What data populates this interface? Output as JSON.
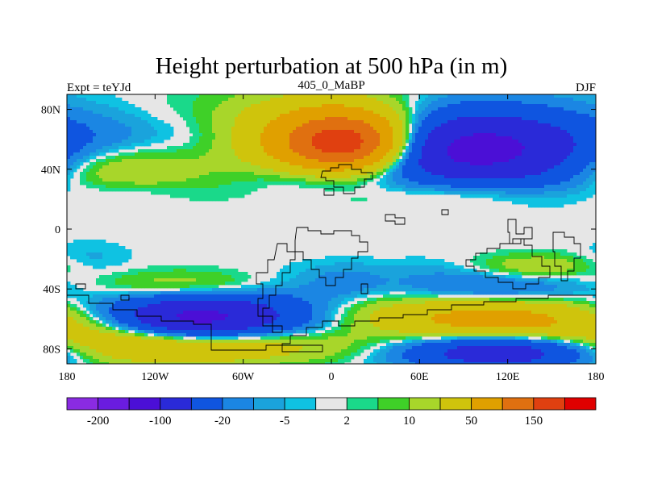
{
  "chart_data": {
    "type": "heatmap",
    "title": "Height perturbation at 500 hPa (in m)",
    "left_string": "Expt = teYJd",
    "center_string": "405_0_MaBP",
    "right_string": "DJF",
    "x_range": [
      -180,
      180
    ],
    "y_range": [
      -90,
      90
    ],
    "x_ticks": [
      -180,
      -120,
      -60,
      0,
      60,
      120,
      180
    ],
    "x_tick_labels": [
      "180",
      "120W",
      "60W",
      "0",
      "60E",
      "120E",
      "180"
    ],
    "y_ticks": [
      80,
      40,
      0,
      -40,
      -80
    ],
    "y_tick_labels": [
      "80N",
      "40N",
      "0",
      "40S",
      "80S"
    ],
    "colorbar": {
      "levels": [
        -200,
        -150,
        -100,
        -50,
        -20,
        -10,
        -5,
        -2,
        2,
        5,
        10,
        20,
        50,
        100,
        150,
        200
      ],
      "shown_labels": [
        "-200",
        "-100",
        "-20",
        "-5",
        "2",
        "10",
        "50",
        "150"
      ],
      "colors": [
        "#8a2be2",
        "#6a1ce0",
        "#4b0fd6",
        "#2a2ad8",
        "#0f55e0",
        "#1b86e3",
        "#1aa3dc",
        "#0fc2e2",
        "#e6e6e6",
        "#1ad98a",
        "#3fd028",
        "#a8d62a",
        "#cfc40c",
        "#e0a000",
        "#e07010",
        "#e04010",
        "#e00000"
      ]
    },
    "fields": [
      {
        "lon": 10,
        "lat": 57,
        "amp": 170,
        "slon": 30,
        "slat": 14
      },
      {
        "lon": -5,
        "lat": 62,
        "amp": 60,
        "slon": 55,
        "slat": 20
      },
      {
        "lon": 95,
        "lat": 53,
        "amp": -110,
        "slon": 50,
        "slat": 16
      },
      {
        "lon": 60,
        "lat": 60,
        "amp": -25,
        "slon": 80,
        "slat": 22
      },
      {
        "lon": -150,
        "lat": 40,
        "amp": 25,
        "slon": 40,
        "slat": 12
      },
      {
        "lon": -110,
        "lat": 60,
        "amp": -12,
        "slon": 70,
        "slat": 12
      },
      {
        "lon": 0,
        "lat": 36,
        "amp": -30,
        "slon": 35,
        "slat": 9
      },
      {
        "lon": 90,
        "lat": 25,
        "amp": 20,
        "slon": 45,
        "slat": 8
      },
      {
        "lon": 150,
        "lat": 33,
        "amp": -8,
        "slon": 30,
        "slat": 10
      },
      {
        "lon": -140,
        "lat": 25,
        "amp": -8,
        "slon": 25,
        "slat": 6
      },
      {
        "lon": -90,
        "lat": -60,
        "amp": -95,
        "slon": 35,
        "slat": 10
      },
      {
        "lon": -120,
        "lat": -60,
        "amp": -30,
        "slon": 60,
        "slat": 12
      },
      {
        "lon": -130,
        "lat": -75,
        "amp": 45,
        "slon": 55,
        "slat": 10
      },
      {
        "lon": -60,
        "lat": -78,
        "amp": 30,
        "slon": 60,
        "slat": 8
      },
      {
        "lon": 120,
        "lat": -62,
        "amp": 55,
        "slon": 55,
        "slat": 9
      },
      {
        "lon": 90,
        "lat": -55,
        "amp": 20,
        "slon": 70,
        "slat": 10
      },
      {
        "lon": 115,
        "lat": -82,
        "amp": -80,
        "slon": 45,
        "slat": 8
      },
      {
        "lon": 110,
        "lat": -40,
        "amp": -25,
        "slon": 45,
        "slat": 7
      },
      {
        "lon": 140,
        "lat": -25,
        "amp": 18,
        "slon": 30,
        "slat": 6
      },
      {
        "lon": -100,
        "lat": -38,
        "amp": 20,
        "slon": 45,
        "slat": 7
      },
      {
        "lon": -30,
        "lat": -55,
        "amp": -20,
        "slon": 30,
        "slat": 15
      },
      {
        "lon": 10,
        "lat": -35,
        "amp": -12,
        "slon": 18,
        "slat": 8
      },
      {
        "lon": 70,
        "lat": -30,
        "amp": -6,
        "slon": 30,
        "slat": 8
      },
      {
        "lon": -165,
        "lat": -20,
        "amp": -7,
        "slon": 20,
        "slat": 8
      }
    ]
  }
}
